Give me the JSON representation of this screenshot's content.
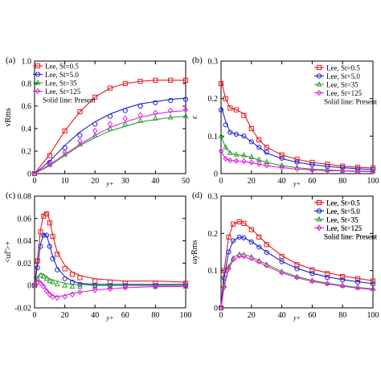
{
  "figure": {
    "legend_note": "Solid line: Present"
  },
  "colors": {
    "st0_5": "#e41a1c",
    "st5_0": "#1f1fd6",
    "st35": "#2ca02c",
    "st125": "#e51ee0"
  },
  "chart_data": [
    {
      "type": "line",
      "panel_label": "(a)",
      "ylabel": "vRms",
      "xlabel": "y+",
      "xlim": [
        0,
        50
      ],
      "ylim": [
        0,
        1.0
      ],
      "xticks": [
        "0",
        "10",
        "20",
        "30",
        "40",
        "50"
      ],
      "yticks": [
        "0",
        "0.2",
        "0.4",
        "0.6",
        "0.8",
        "1.0"
      ],
      "legend": [
        "Lee, St=0.5",
        "Lee, St=5.0",
        "Lee, St=35",
        "Lee, St=125"
      ],
      "legend_position": "top-left",
      "series": [
        {
          "name": "Lee, St=0.5",
          "markers": "square",
          "x": [
            0,
            5,
            10,
            15,
            20,
            25,
            30,
            35,
            40,
            45,
            50
          ],
          "line": [
            0,
            0.17,
            0.38,
            0.55,
            0.68,
            0.76,
            0.8,
            0.82,
            0.83,
            0.83,
            0.83
          ],
          "symbols": [
            0,
            0.16,
            0.38,
            0.55,
            0.68,
            0.76,
            0.8,
            0.82,
            0.83,
            0.83,
            0.83
          ]
        },
        {
          "name": "Lee, St=5.0",
          "markers": "circle",
          "x": [
            0,
            5,
            10,
            15,
            20,
            25,
            30,
            35,
            40,
            45,
            50
          ],
          "line": [
            0,
            0.11,
            0.25,
            0.37,
            0.46,
            0.53,
            0.58,
            0.62,
            0.64,
            0.66,
            0.67
          ],
          "symbols": [
            0,
            0.1,
            0.23,
            0.34,
            0.44,
            0.51,
            0.56,
            0.6,
            0.63,
            0.65,
            0.66
          ]
        },
        {
          "name": "Lee, St=35",
          "markers": "triangle",
          "x": [
            0,
            5,
            10,
            15,
            20,
            25,
            30,
            35,
            40,
            45,
            50
          ],
          "line": [
            0,
            0.07,
            0.16,
            0.25,
            0.32,
            0.38,
            0.42,
            0.46,
            0.48,
            0.5,
            0.51
          ],
          "symbols": [
            0,
            0.08,
            0.17,
            0.26,
            0.34,
            0.4,
            0.44,
            0.47,
            0.49,
            0.5,
            0.51
          ]
        },
        {
          "name": "Lee, St=125",
          "markers": "diamond",
          "x": [
            0,
            5,
            10,
            15,
            20,
            25,
            30,
            35,
            40,
            45,
            50
          ],
          "line": [
            0,
            0.08,
            0.17,
            0.26,
            0.34,
            0.41,
            0.46,
            0.5,
            0.53,
            0.55,
            0.56
          ],
          "symbols": [
            0,
            0.08,
            0.19,
            0.29,
            0.38,
            0.44,
            0.49,
            0.52,
            0.54,
            0.56,
            0.57
          ]
        }
      ]
    },
    {
      "type": "line",
      "panel_label": "(b)",
      "ylabel": "ε",
      "xlabel": "y+",
      "xlim": [
        0,
        100
      ],
      "ylim": [
        0,
        0.3
      ],
      "xticks": [
        "0",
        "20",
        "40",
        "60",
        "80",
        "100"
      ],
      "yticks": [
        "0",
        "0.1",
        "0.2",
        "0.3"
      ],
      "legend": [
        "Lee, St=0.5",
        "Lee, St=5.0",
        "Lee, St=35",
        "Lee, St=125"
      ],
      "legend_position": "top-right",
      "series": [
        {
          "name": "Lee, St=0.5",
          "markers": "square",
          "x": [
            0,
            3,
            6,
            10,
            15,
            20,
            25,
            30,
            40,
            50,
            60,
            70,
            80,
            90,
            100
          ],
          "line": [
            0.25,
            0.2,
            0.175,
            0.17,
            0.16,
            0.12,
            0.09,
            0.07,
            0.05,
            0.038,
            0.03,
            0.025,
            0.02,
            0.017,
            0.015
          ],
          "symbols": [
            0.24,
            0.2,
            0.175,
            0.17,
            0.155,
            0.12,
            0.09,
            0.07,
            0.05,
            0.038,
            0.03,
            0.025,
            0.02,
            0.017,
            0.015
          ]
        },
        {
          "name": "Lee, St=5.0",
          "markers": "circle",
          "x": [
            0,
            3,
            6,
            10,
            15,
            20,
            25,
            30,
            40,
            50,
            60,
            70,
            80,
            90,
            100
          ],
          "line": [
            0.18,
            0.14,
            0.11,
            0.105,
            0.1,
            0.085,
            0.07,
            0.055,
            0.04,
            0.03,
            0.024,
            0.019,
            0.016,
            0.013,
            0.011
          ],
          "symbols": [
            0.17,
            0.13,
            0.11,
            0.105,
            0.1,
            0.085,
            0.07,
            0.057,
            0.041,
            0.031,
            0.024,
            0.019,
            0.016,
            0.013,
            0.011
          ]
        },
        {
          "name": "Lee, St=35",
          "markers": "triangle",
          "x": [
            0,
            3,
            6,
            10,
            15,
            20,
            25,
            30,
            40,
            50,
            60,
            70,
            80,
            90,
            100
          ],
          "line": [
            0.1,
            0.07,
            0.055,
            0.05,
            0.048,
            0.043,
            0.036,
            0.03,
            0.021,
            0.016,
            0.012,
            0.01,
            0.008,
            0.007,
            0.006
          ],
          "symbols": [
            0.1,
            0.07,
            0.055,
            0.051,
            0.049,
            0.044,
            0.037,
            0.031,
            0.022,
            0.016,
            0.012,
            0.01,
            0.008,
            0.007,
            0.006
          ]
        },
        {
          "name": "Lee, St=125",
          "markers": "diamond",
          "x": [
            0,
            3,
            6,
            10,
            15,
            20,
            25,
            30,
            40,
            50,
            60,
            70,
            80,
            90,
            100
          ],
          "line": [
            0.06,
            0.04,
            0.035,
            0.034,
            0.032,
            0.029,
            0.025,
            0.021,
            0.016,
            0.012,
            0.01,
            0.008,
            0.007,
            0.006,
            0.005
          ],
          "symbols": [
            0.06,
            0.04,
            0.035,
            0.034,
            0.033,
            0.03,
            0.026,
            0.022,
            0.016,
            0.012,
            0.01,
            0.008,
            0.007,
            0.006,
            0.005
          ]
        }
      ]
    },
    {
      "type": "line",
      "panel_label": "(c)",
      "ylabel": "<uf'>+",
      "xlabel": "y+",
      "xlim": [
        0,
        100
      ],
      "ylim": [
        -0.02,
        0.08
      ],
      "xticks": [
        "0",
        "20",
        "40",
        "60",
        "80",
        "100"
      ],
      "yticks": [
        "-0.02",
        "0",
        "0.02",
        "0.04",
        "0.06",
        "0.08"
      ],
      "legend": [
        "Lee, St=0.5",
        "Lee, St=5.0",
        "Lee, St=35",
        "Lee, St=125"
      ],
      "legend_position": "top-right",
      "series": [
        {
          "name": "Lee, St=0.5",
          "markers": "square",
          "x": [
            0,
            2,
            4,
            6,
            8,
            10,
            12,
            15,
            20,
            25,
            30,
            40,
            50,
            60,
            80,
            100
          ],
          "line": [
            0,
            0.025,
            0.05,
            0.064,
            0.066,
            0.058,
            0.045,
            0.03,
            0.018,
            0.012,
            0.009,
            0.006,
            0.005,
            0.004,
            0.004,
            0.003
          ],
          "symbols": [
            0,
            0.022,
            0.048,
            0.062,
            0.064,
            0.056,
            0.044,
            0.028,
            0.015,
            0.01,
            0.007,
            0.004,
            0.003,
            0.002,
            0.002,
            0.002
          ]
        },
        {
          "name": "Lee, St=5.0",
          "markers": "circle",
          "x": [
            0,
            2,
            4,
            6,
            8,
            10,
            12,
            15,
            20,
            25,
            30,
            40,
            50,
            60,
            80,
            100
          ],
          "line": [
            0,
            0.018,
            0.037,
            0.046,
            0.045,
            0.036,
            0.026,
            0.016,
            0.008,
            0.004,
            0.002,
            0.001,
            0.001,
            0.001,
            0.001,
            0.001
          ],
          "symbols": [
            0,
            0.016,
            0.035,
            0.045,
            0.045,
            0.035,
            0.024,
            0.014,
            0.006,
            0.003,
            0.001,
            0.0,
            0.0,
            0.0,
            0.0,
            0.0
          ]
        },
        {
          "name": "Lee, St=35",
          "markers": "triangle",
          "x": [
            0,
            2,
            4,
            6,
            8,
            10,
            12,
            15,
            20,
            25,
            30,
            40,
            50,
            60,
            80,
            100
          ],
          "line": [
            0,
            0.008,
            0.011,
            0.01,
            0.008,
            0.006,
            0.005,
            0.004,
            0.002,
            0.001,
            0.001,
            0.0,
            0.0,
            0.0,
            0.0,
            0.0
          ],
          "symbols": [
            0,
            0.006,
            0.009,
            0.008,
            0.006,
            0.004,
            0.003,
            0.001,
            0.0,
            -0.001,
            -0.001,
            -0.001,
            -0.001,
            -0.001,
            -0.001,
            -0.001
          ]
        },
        {
          "name": "Lee, St=125",
          "markers": "diamond",
          "x": [
            0,
            2,
            4,
            6,
            8,
            10,
            12,
            15,
            20,
            25,
            30,
            40,
            50,
            60,
            80,
            100
          ],
          "line": [
            0,
            0.004,
            0.003,
            0.0,
            -0.004,
            -0.007,
            -0.009,
            -0.01,
            -0.009,
            -0.007,
            -0.006,
            -0.004,
            -0.003,
            -0.002,
            -0.001,
            -0.001
          ],
          "symbols": [
            0,
            0.003,
            0.002,
            -0.001,
            -0.005,
            -0.008,
            -0.01,
            -0.011,
            -0.01,
            -0.008,
            -0.006,
            -0.004,
            -0.003,
            -0.002,
            -0.001,
            -0.001
          ]
        }
      ]
    },
    {
      "type": "line",
      "panel_label": "(d)",
      "ylabel": "ωyRms",
      "xlabel": "y+",
      "xlim": [
        0,
        100
      ],
      "ylim": [
        0,
        0.3
      ],
      "xticks": [
        "0",
        "20",
        "40",
        "60",
        "80",
        "100"
      ],
      "yticks": [
        "0",
        "0.1",
        "0.2",
        "0.3"
      ],
      "legend": [
        "Lee, St=0.5",
        "Lee, St=5.0",
        "Lee, St=35",
        "Lee, St=125"
      ],
      "legend_position": "top-right",
      "series": [
        {
          "name": "Lee, St=0.5",
          "markers": "square",
          "x": [
            0,
            2,
            5,
            8,
            12,
            15,
            20,
            25,
            30,
            40,
            50,
            60,
            70,
            80,
            90,
            100
          ],
          "line": [
            0,
            0.1,
            0.19,
            0.225,
            0.232,
            0.228,
            0.212,
            0.192,
            0.172,
            0.14,
            0.118,
            0.104,
            0.094,
            0.086,
            0.079,
            0.073
          ],
          "symbols": [
            0,
            0.1,
            0.19,
            0.225,
            0.231,
            0.227,
            0.21,
            0.19,
            0.17,
            0.138,
            0.116,
            0.102,
            0.092,
            0.084,
            0.078,
            0.072
          ]
        },
        {
          "name": "Lee, St=5.0",
          "markers": "circle",
          "x": [
            0,
            2,
            5,
            8,
            12,
            15,
            20,
            25,
            30,
            40,
            50,
            60,
            70,
            80,
            90,
            100
          ],
          "line": [
            0,
            0.08,
            0.15,
            0.18,
            0.19,
            0.188,
            0.178,
            0.164,
            0.15,
            0.125,
            0.106,
            0.093,
            0.083,
            0.076,
            0.07,
            0.065
          ],
          "symbols": [
            0,
            0.08,
            0.15,
            0.18,
            0.19,
            0.188,
            0.177,
            0.163,
            0.149,
            0.124,
            0.105,
            0.092,
            0.082,
            0.075,
            0.069,
            0.064
          ]
        },
        {
          "name": "Lee, St=35",
          "markers": "triangle",
          "x": [
            0,
            2,
            5,
            8,
            12,
            15,
            20,
            25,
            30,
            40,
            50,
            60,
            70,
            80,
            90,
            100
          ],
          "line": [
            0,
            0.06,
            0.11,
            0.135,
            0.145,
            0.144,
            0.137,
            0.127,
            0.117,
            0.098,
            0.084,
            0.074,
            0.066,
            0.06,
            0.055,
            0.051
          ],
          "symbols": [
            0,
            0.06,
            0.11,
            0.133,
            0.143,
            0.142,
            0.136,
            0.126,
            0.116,
            0.097,
            0.083,
            0.073,
            0.066,
            0.06,
            0.055,
            0.051
          ]
        },
        {
          "name": "Lee, St=125",
          "markers": "diamond",
          "x": [
            0,
            2,
            5,
            8,
            12,
            15,
            20,
            25,
            30,
            40,
            50,
            60,
            70,
            80,
            90,
            100
          ],
          "line": [
            0,
            0.055,
            0.105,
            0.128,
            0.138,
            0.137,
            0.131,
            0.122,
            0.112,
            0.094,
            0.081,
            0.071,
            0.064,
            0.058,
            0.053,
            0.049
          ],
          "symbols": [
            0,
            0.055,
            0.105,
            0.13,
            0.14,
            0.139,
            0.133,
            0.124,
            0.114,
            0.095,
            0.082,
            0.072,
            0.065,
            0.059,
            0.054,
            0.05
          ]
        }
      ]
    }
  ]
}
